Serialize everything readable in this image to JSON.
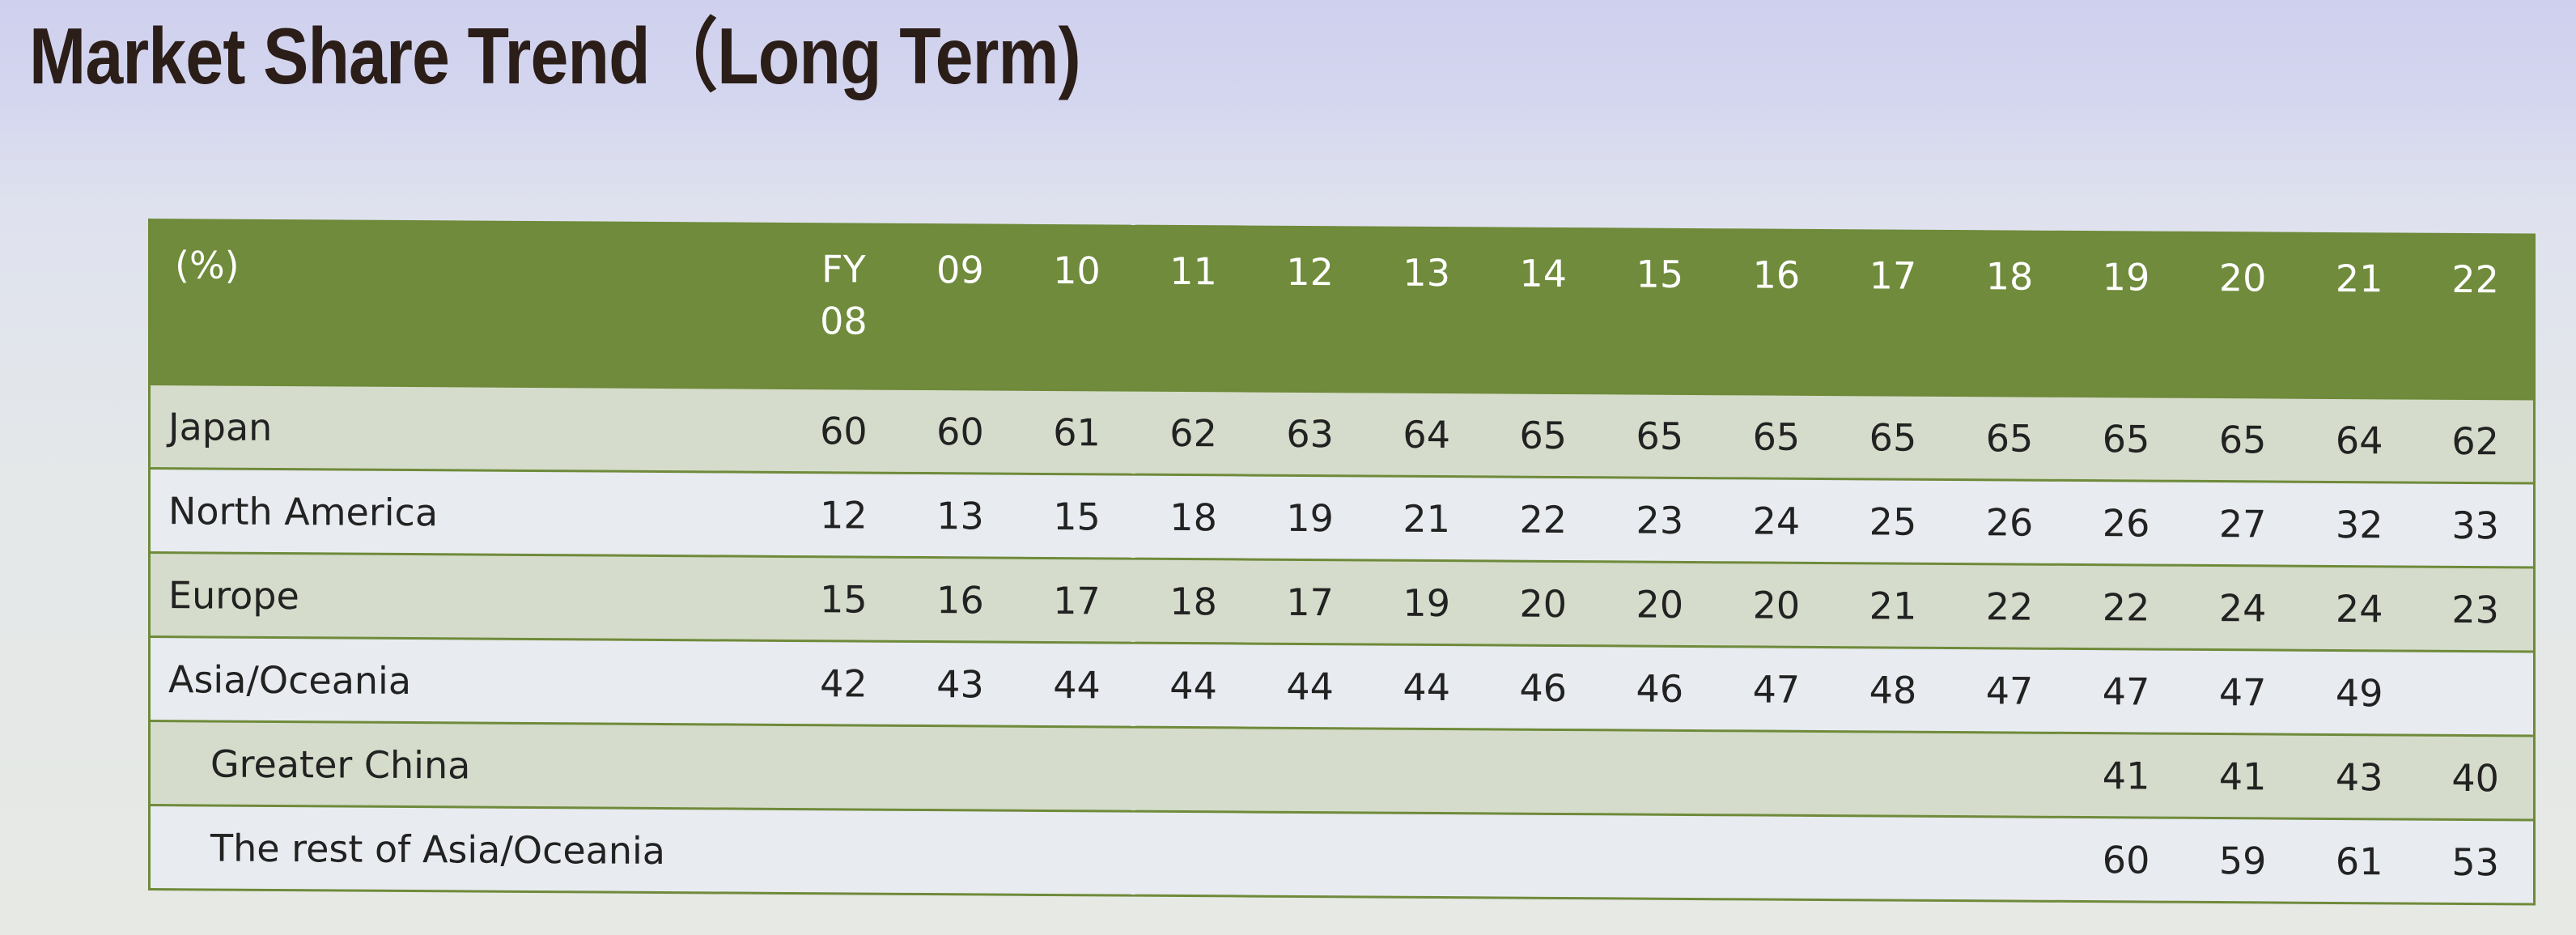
{
  "slide": {
    "title": "Market Share Trend（Long Term)"
  },
  "colors": {
    "header_background": "#6f8b3b",
    "header_text": "#ffffff",
    "row_band": "#d5dccb",
    "row_alt": "#e8ebf0",
    "title_text": "#2b1d17"
  },
  "chart_data": {
    "type": "table",
    "title": "Market Share Trend（Long Term)",
    "unit_label": "(%)",
    "fy_prefix": "FY",
    "columns": [
      "08",
      "09",
      "10",
      "11",
      "12",
      "13",
      "14",
      "15",
      "16",
      "17",
      "18",
      "19",
      "20",
      "21",
      "22"
    ],
    "rows": [
      {
        "label": "Japan",
        "indent": false,
        "values": [
          60,
          60,
          61,
          62,
          63,
          64,
          65,
          65,
          65,
          65,
          65,
          65,
          65,
          64,
          62
        ]
      },
      {
        "label": "North America",
        "indent": false,
        "values": [
          12,
          13,
          15,
          18,
          19,
          21,
          22,
          23,
          24,
          25,
          26,
          26,
          27,
          32,
          33
        ]
      },
      {
        "label": "Europe",
        "indent": false,
        "values": [
          15,
          16,
          17,
          18,
          17,
          19,
          20,
          20,
          20,
          21,
          22,
          22,
          24,
          24,
          23
        ]
      },
      {
        "label": "Asia/Oceania",
        "indent": false,
        "values": [
          42,
          43,
          44,
          44,
          44,
          44,
          46,
          46,
          47,
          48,
          47,
          47,
          47,
          49,
          null
        ]
      },
      {
        "label": "Greater China",
        "indent": true,
        "values": [
          null,
          null,
          null,
          null,
          null,
          null,
          null,
          null,
          null,
          null,
          null,
          41,
          41,
          43,
          40
        ]
      },
      {
        "label": "The rest of Asia/Oceania",
        "indent": true,
        "values": [
          null,
          null,
          null,
          null,
          null,
          null,
          null,
          null,
          null,
          null,
          null,
          60,
          59,
          61,
          53
        ]
      }
    ]
  }
}
